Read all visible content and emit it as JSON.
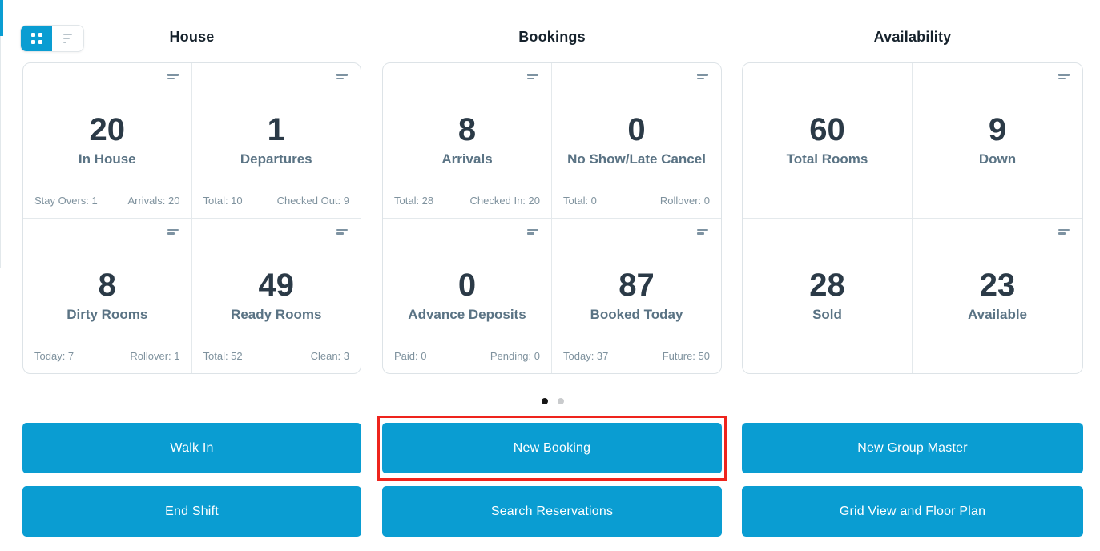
{
  "colors": {
    "accent": "#0a9dd2",
    "highlight_red": "#ee241d"
  },
  "view_toggle": {
    "grid_icon": "grid-tiles-icon",
    "list_icon": "list-lines-icon",
    "active": "grid"
  },
  "card_menu_icon": "menu-lines-icon",
  "sections": [
    {
      "title": "House",
      "cards": [
        {
          "value": "20",
          "label": "In House",
          "foot_left": "Stay Overs: 1",
          "foot_right": "Arrivals: 20"
        },
        {
          "value": "1",
          "label": "Departures",
          "foot_left": "Total: 10",
          "foot_right": "Checked Out: 9"
        },
        {
          "value": "8",
          "label": "Dirty Rooms",
          "foot_left": "Today: 7",
          "foot_right": "Rollover: 1"
        },
        {
          "value": "49",
          "label": "Ready Rooms",
          "foot_left": "Total: 52",
          "foot_right": "Clean: 3"
        }
      ]
    },
    {
      "title": "Bookings",
      "cards": [
        {
          "value": "8",
          "label": "Arrivals",
          "foot_left": "Total: 28",
          "foot_right": "Checked In: 20"
        },
        {
          "value": "0",
          "label": "No Show/Late Cancel",
          "foot_left": "Total: 0",
          "foot_right": "Rollover: 0"
        },
        {
          "value": "0",
          "label": "Advance Deposits",
          "foot_left": "Paid: 0",
          "foot_right": "Pending: 0"
        },
        {
          "value": "87",
          "label": "Booked Today",
          "foot_left": "Today: 37",
          "foot_right": "Future: 50"
        }
      ]
    },
    {
      "title": "Availability",
      "cards": [
        {
          "value": "60",
          "label": "Total Rooms"
        },
        {
          "value": "9",
          "label": "Down"
        },
        {
          "value": "28",
          "label": "Sold"
        },
        {
          "value": "23",
          "label": "Available"
        }
      ]
    }
  ],
  "carousel": {
    "page_count": 2,
    "active_page": 1
  },
  "actions": {
    "walk_in": "Walk In",
    "new_booking": "New Booking",
    "new_group_master": "New Group Master",
    "end_shift": "End Shift",
    "search_reservations": "Search Reservations",
    "grid_view_floor_plan": "Grid View and Floor Plan"
  }
}
